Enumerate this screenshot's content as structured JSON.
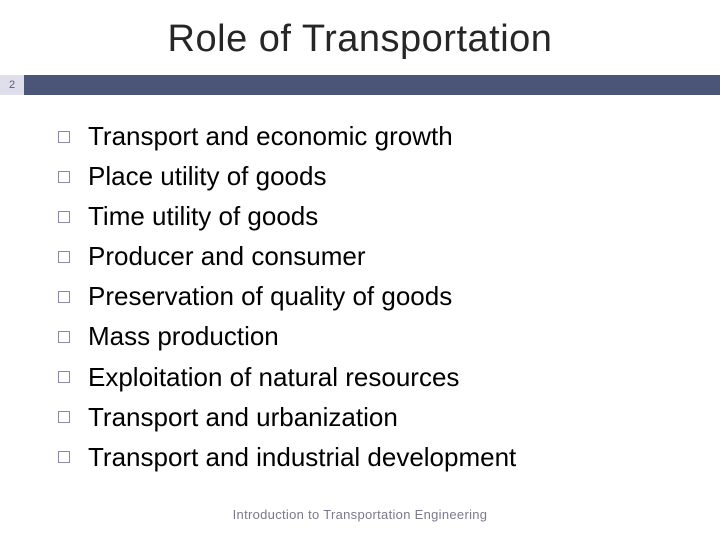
{
  "slide": {
    "title": "Role of Transportation",
    "page_number": "2",
    "title_fontsize": 38,
    "title_color": "#262626",
    "divider_color": "#4a5578",
    "page_box_bg": "#dfdfeb",
    "page_box_color": "#5a5a7a",
    "background_color": "#ffffff",
    "bullets": [
      "Transport and economic growth",
      "Place utility of goods",
      "Time utility of goods",
      "Producer and consumer",
      "Preservation of quality of goods",
      "Mass production",
      "Exploitation of natural resources",
      "Transport and urbanization",
      "Transport and industrial development"
    ],
    "bullet_border_color": "#8a8aa0",
    "item_fontsize": 26,
    "item_color": "#000000",
    "footer": "Introduction to Transportation Engineering",
    "footer_color": "#7a7a8a",
    "footer_fontsize": 13
  }
}
